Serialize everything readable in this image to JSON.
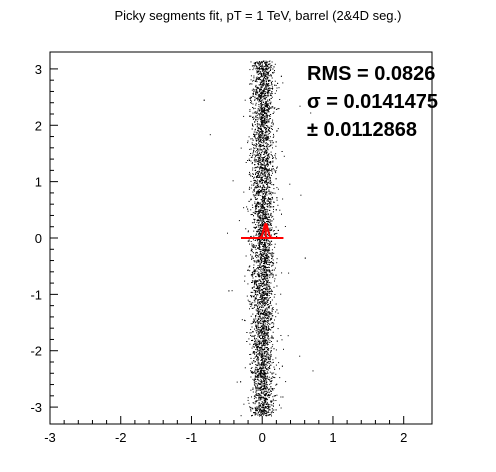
{
  "chart_data": {
    "type": "scatter",
    "title": "Picky segments fit, pT = 1 TeV, barrel (2&4D seg.)",
    "xlabel": "",
    "ylabel": "",
    "xlim": [
      -3,
      2.4
    ],
    "ylim": [
      -3.3,
      3.3
    ],
    "x_ticks": [
      -3,
      -2,
      -1,
      0,
      1,
      2
    ],
    "y_ticks": [
      -3,
      -2,
      -1,
      0,
      1,
      2,
      3
    ],
    "x_tick_labels": [
      "-3",
      "-2",
      "-1",
      "0",
      "1",
      "2"
    ],
    "y_tick_labels": [
      "-3",
      "-2",
      "-1",
      "0",
      "1",
      "2",
      "3"
    ],
    "grid": false,
    "legend": "none",
    "stats": {
      "rms_line": "RMS = 0.0826",
      "sigma_line": "σ = 0.0141475",
      "error_line": "± 0.0112868"
    },
    "scatter_series": {
      "name": "",
      "color": "#000000",
      "x_center": 0.0,
      "x_spread": 0.08,
      "y_range": [
        -3.15,
        3.15
      ],
      "approx_points": 5000
    },
    "fit_overlay": {
      "color": "#ff0000",
      "horizontal_segment": {
        "x": [
          -0.3,
          0.3
        ],
        "y": 0.0
      },
      "peak_curve": {
        "x_center": 0.05,
        "width": 0.03,
        "peak_y": 0.25
      },
      "error_bar": {
        "x": 0.05,
        "y": [
          0.0,
          0.25
        ]
      }
    }
  }
}
